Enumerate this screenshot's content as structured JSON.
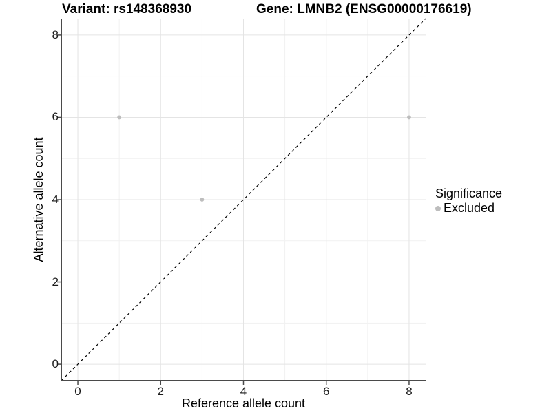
{
  "header": {
    "title_left": "Variant: rs148368930",
    "title_right": "Gene: LMNB2 (ENSG00000176619)"
  },
  "chart_data": {
    "type": "scatter",
    "title": "Variant: rs148368930 / Gene: LMNB2 (ENSG00000176619)",
    "xlabel": "Reference allele count",
    "ylabel": "Alternative allele count",
    "xlim": [
      -0.4,
      8.4
    ],
    "ylim": [
      -0.4,
      8.4
    ],
    "x_ticks": [
      "0",
      "2",
      "4",
      "6",
      "8"
    ],
    "x_tick_values": [
      0,
      2,
      4,
      6,
      8
    ],
    "y_ticks": [
      "0",
      "2",
      "4",
      "6",
      "8"
    ],
    "y_tick_values": [
      0,
      2,
      4,
      6,
      8
    ],
    "minor_grid_values": [
      1,
      3,
      5,
      7
    ],
    "grid": "on",
    "legend_position": "right",
    "series": [
      {
        "name": "Excluded",
        "color": "#bdbdbd",
        "points": [
          {
            "x": 1,
            "y": 6
          },
          {
            "x": 3,
            "y": 4
          },
          {
            "x": 8,
            "y": 6
          }
        ]
      }
    ],
    "identity_line": {
      "type": "y=x",
      "style": "dashed",
      "color": "#000000"
    },
    "legend": {
      "title": "Significance",
      "entries": [
        {
          "label": "Excluded",
          "color": "#bdbdbd"
        }
      ]
    }
  },
  "colors": {
    "background": "#ffffff",
    "grid_major": "#e4e4e4",
    "grid_minor": "#f1f1f1",
    "axis_line": "#4a4a4a",
    "tick_label": "#1a1a1a",
    "point": "#bdbdbd"
  }
}
